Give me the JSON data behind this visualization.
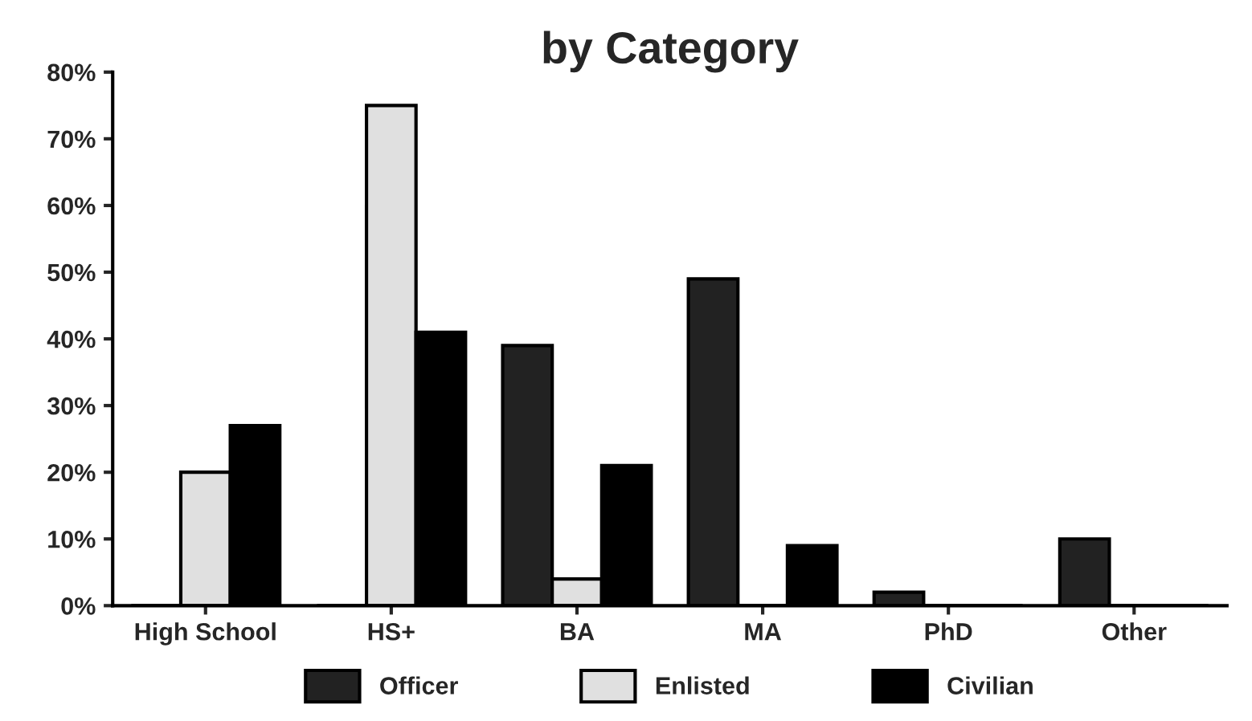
{
  "chart_data": {
    "type": "bar",
    "title": "by Category",
    "categories": [
      "High School",
      "HS+",
      "BA",
      "MA",
      "PhD",
      "Other"
    ],
    "series": [
      {
        "name": "Officer",
        "color": "#222222",
        "values": [
          0,
          0,
          39,
          49,
          2,
          10
        ]
      },
      {
        "name": "Enlisted",
        "color": "#e0e0e0",
        "values": [
          20,
          75,
          4,
          0,
          0,
          0
        ]
      },
      {
        "name": "Civilian",
        "color": "#000000",
        "values": [
          27,
          41,
          21,
          9,
          0,
          0
        ]
      }
    ],
    "ylim": [
      0,
      80
    ],
    "yticks": [
      {
        "value": 0,
        "label": "0%"
      },
      {
        "value": 10,
        "label": "10%"
      },
      {
        "value": 20,
        "label": "20%"
      },
      {
        "value": 30,
        "label": "30%"
      },
      {
        "value": 40,
        "label": "40%"
      },
      {
        "value": 50,
        "label": "50%"
      },
      {
        "value": 60,
        "label": "60%"
      },
      {
        "value": 70,
        "label": "70%"
      },
      {
        "value": 80,
        "label": "80%"
      }
    ],
    "grid": false,
    "legend": "bottom"
  }
}
